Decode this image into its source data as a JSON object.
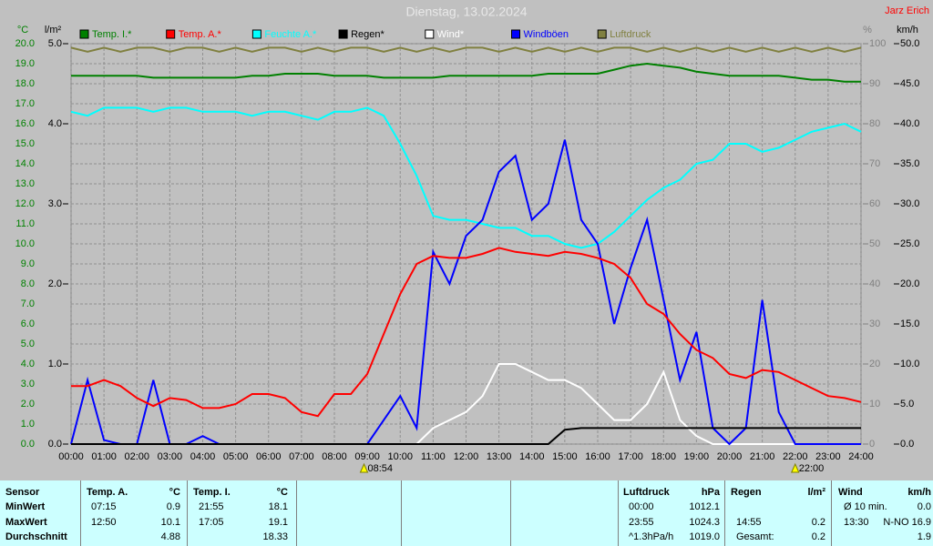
{
  "chart_data": {
    "type": "line",
    "title": "Dienstag, 13.02.2024",
    "author": "Jarz Erich",
    "axis_units": {
      "y": "°C",
      "y3": "l/m²",
      "y2": "%",
      "y4": "km/h"
    },
    "x": [
      0,
      0.5,
      1,
      1.5,
      2,
      2.5,
      3,
      3.5,
      4,
      4.5,
      5,
      5.5,
      6,
      6.5,
      7,
      7.5,
      8,
      8.5,
      9,
      9.5,
      10,
      10.5,
      11,
      11.5,
      12,
      12.5,
      13,
      13.5,
      14,
      14.5,
      15,
      15.5,
      16,
      16.5,
      17,
      17.5,
      18,
      18.5,
      19,
      19.5,
      20,
      20.5,
      21,
      21.5,
      22,
      22.5,
      23,
      23.5,
      24
    ],
    "xlim": [
      0,
      24
    ],
    "xticks": [
      {
        "value": 0,
        "label": "00:00"
      },
      {
        "value": 1,
        "label": "01:00"
      },
      {
        "value": 2,
        "label": "02:00"
      },
      {
        "value": 3,
        "label": "03:00"
      },
      {
        "value": 4,
        "label": "04:00"
      },
      {
        "value": 5,
        "label": "05:00"
      },
      {
        "value": 6,
        "label": "06:00"
      },
      {
        "value": 7,
        "label": "07:00"
      },
      {
        "value": 8,
        "label": "08:00"
      },
      {
        "value": 9,
        "label": "09:00"
      },
      {
        "value": 10,
        "label": "10:00"
      },
      {
        "value": 11,
        "label": "11:00"
      },
      {
        "value": 12,
        "label": "12:00"
      },
      {
        "value": 13,
        "label": "13:00"
      },
      {
        "value": 14,
        "label": "14:00"
      },
      {
        "value": 15,
        "label": "15:00"
      },
      {
        "value": 16,
        "label": "16:00"
      },
      {
        "value": 17,
        "label": "17:00"
      },
      {
        "value": 18,
        "label": "18:00"
      },
      {
        "value": 19,
        "label": "19:00"
      },
      {
        "value": 20,
        "label": "20:00"
      },
      {
        "value": 21,
        "label": "21:00"
      },
      {
        "value": 22,
        "label": "22:00"
      },
      {
        "value": 23,
        "label": "23:00"
      },
      {
        "value": 24,
        "label": "24:00"
      }
    ],
    "ylim": [
      0,
      20
    ],
    "yticks": [
      {
        "value": 0,
        "label": "0.0"
      },
      {
        "value": 1,
        "label": "1.0"
      },
      {
        "value": 2,
        "label": "2.0"
      },
      {
        "value": 3,
        "label": "3.0"
      },
      {
        "value": 4,
        "label": "4.0"
      },
      {
        "value": 5,
        "label": "5.0"
      },
      {
        "value": 6,
        "label": "6.0"
      },
      {
        "value": 7,
        "label": "7.0"
      },
      {
        "value": 8,
        "label": "8.0"
      },
      {
        "value": 9,
        "label": "9.0"
      },
      {
        "value": 10,
        "label": "10.0"
      },
      {
        "value": 11,
        "label": "11.0"
      },
      {
        "value": 12,
        "label": "12.0"
      },
      {
        "value": 13,
        "label": "13.0"
      },
      {
        "value": 14,
        "label": "14.0"
      },
      {
        "value": 15,
        "label": "15.0"
      },
      {
        "value": 16,
        "label": "16.0"
      },
      {
        "value": 17,
        "label": "17.0"
      },
      {
        "value": 18,
        "label": "18.0"
      },
      {
        "value": 19,
        "label": "19.0"
      },
      {
        "value": 20,
        "label": "20.0"
      }
    ],
    "y2lim": [
      0,
      100
    ],
    "y2ticks": [
      0,
      10,
      20,
      30,
      40,
      50,
      60,
      70,
      80,
      90,
      100
    ],
    "y3lim": [
      0,
      5
    ],
    "y3ticks": [
      {
        "value": 0,
        "label": "0.0"
      },
      {
        "value": 1,
        "label": "1.0"
      },
      {
        "value": 2,
        "label": "2.0"
      },
      {
        "value": 3,
        "label": "3.0"
      },
      {
        "value": 4,
        "label": "4.0"
      },
      {
        "value": 5,
        "label": "5.0"
      }
    ],
    "y4lim": [
      0,
      50
    ],
    "y4ticks": [
      {
        "value": 0,
        "label": "0.0"
      },
      {
        "value": 5,
        "label": "5.0"
      },
      {
        "value": 10,
        "label": "10.0"
      },
      {
        "value": 15,
        "label": "15.0"
      },
      {
        "value": 20,
        "label": "20.0"
      },
      {
        "value": 25,
        "label": "25.0"
      },
      {
        "value": 30,
        "label": "30.0"
      },
      {
        "value": 35,
        "label": "35.0"
      },
      {
        "value": 40,
        "label": "40.0"
      },
      {
        "value": 45,
        "label": "45.0"
      },
      {
        "value": 50,
        "label": "50.0"
      }
    ],
    "grid": true,
    "series": [
      {
        "name": "Temp. I.*",
        "color": "#008000",
        "axis": "y",
        "values": [
          18.4,
          18.4,
          18.4,
          18.4,
          18.4,
          18.3,
          18.3,
          18.3,
          18.3,
          18.3,
          18.3,
          18.4,
          18.4,
          18.5,
          18.5,
          18.5,
          18.4,
          18.4,
          18.4,
          18.3,
          18.3,
          18.3,
          18.3,
          18.4,
          18.4,
          18.4,
          18.4,
          18.4,
          18.4,
          18.5,
          18.5,
          18.5,
          18.5,
          18.7,
          18.9,
          19.0,
          18.9,
          18.8,
          18.6,
          18.5,
          18.4,
          18.4,
          18.4,
          18.4,
          18.3,
          18.2,
          18.2,
          18.1,
          18.1
        ]
      },
      {
        "name": "Temp. A.*",
        "color": "#ff0000",
        "axis": "y",
        "values": [
          2.9,
          2.9,
          3.2,
          2.9,
          2.3,
          1.9,
          2.3,
          2.2,
          1.8,
          1.8,
          2.0,
          2.5,
          2.5,
          2.3,
          1.6,
          1.4,
          2.5,
          2.5,
          3.5,
          5.5,
          7.5,
          9.0,
          9.4,
          9.3,
          9.3,
          9.5,
          9.8,
          9.6,
          9.5,
          9.4,
          9.6,
          9.5,
          9.3,
          9.0,
          8.3,
          7.0,
          6.5,
          5.5,
          4.7,
          4.3,
          3.5,
          3.3,
          3.7,
          3.6,
          3.2,
          2.8,
          2.4,
          2.3,
          2.1
        ]
      },
      {
        "name": "Feuchte A.*",
        "color": "#00ffff",
        "axis": "y2",
        "values": [
          83,
          82,
          84,
          84,
          84,
          83,
          84,
          84,
          83,
          83,
          83,
          82,
          83,
          83,
          82,
          81,
          83,
          83,
          84,
          82,
          75,
          67,
          57,
          56,
          56,
          55,
          54,
          54,
          52,
          52,
          50,
          49,
          50,
          53,
          57,
          61,
          64,
          66,
          70,
          71,
          75,
          75,
          73,
          74,
          76,
          78,
          79,
          80,
          78
        ]
      },
      {
        "name": "Regen*",
        "color": "#000000",
        "axis": "y3",
        "values": [
          0,
          0,
          0,
          0,
          0,
          0,
          0,
          0,
          0,
          0,
          0,
          0,
          0,
          0,
          0,
          0,
          0,
          0,
          0,
          0,
          0,
          0,
          0,
          0,
          0,
          0,
          0,
          0,
          0,
          0,
          0.18,
          0.2,
          0.2,
          0.2,
          0.2,
          0.2,
          0.2,
          0.2,
          0.2,
          0.2,
          0.2,
          0.2,
          0.2,
          0.2,
          0.2,
          0.2,
          0.2,
          0.2,
          0.2
        ]
      },
      {
        "name": "Wind*",
        "color": "#ffffff",
        "axis": "y4",
        "values": [
          0,
          0,
          0,
          0,
          0,
          0,
          0,
          0,
          0,
          0,
          0,
          0,
          0,
          0,
          0,
          0,
          0,
          0,
          0,
          0,
          0,
          0,
          2,
          3,
          4,
          6,
          10,
          10,
          9,
          8,
          8,
          7,
          5,
          3,
          3,
          5,
          9,
          3,
          1,
          0,
          0,
          0,
          0,
          0,
          0,
          0,
          0,
          0,
          0
        ]
      },
      {
        "name": "Windböen",
        "color": "#0000ff",
        "axis": "y4",
        "values": [
          0,
          8,
          0.5,
          0,
          0,
          8,
          0,
          0,
          1,
          0,
          0,
          0,
          0,
          0,
          0,
          0,
          0,
          0,
          0,
          3,
          6,
          2,
          24,
          20,
          26,
          28,
          34,
          36,
          28,
          30,
          38,
          28,
          25,
          15,
          22,
          28,
          18,
          8,
          14,
          2,
          0,
          2,
          18,
          4,
          0,
          0,
          0,
          0,
          0
        ]
      },
      {
        "name": "Luftdruck",
        "color": "#808040",
        "axis": "y2",
        "values": [
          99,
          98,
          99,
          98,
          99,
          99,
          98,
          99,
          99,
          98,
          99,
          98,
          99,
          99,
          98,
          99,
          98,
          99,
          99,
          98,
          99,
          98,
          99,
          98,
          99,
          99,
          98,
          99,
          98,
          99,
          98,
          99,
          98,
          99,
          99,
          98,
          99,
          98,
          99,
          98,
          99,
          98,
          99,
          98,
          99,
          98,
          99,
          98,
          99
        ]
      }
    ],
    "annotations": [
      {
        "x": 8.9,
        "label": "08:54"
      },
      {
        "x": 22,
        "label": "22:00"
      }
    ]
  },
  "table": {
    "columns": [
      {
        "header": "Sensor",
        "unit": null,
        "rows": [
          [
            null,
            "MinWert"
          ],
          [
            null,
            "MaxWert"
          ],
          [
            null,
            "Durchschnitt"
          ]
        ]
      },
      {
        "header": "Temp. A.",
        "unit": "°C",
        "rows": [
          [
            "07:15",
            "0.9"
          ],
          [
            "12:50",
            "10.1"
          ],
          [
            null,
            "4.88"
          ]
        ]
      },
      {
        "header": "Temp. I.",
        "unit": "°C",
        "rows": [
          [
            "21:55",
            "18.1"
          ],
          [
            "17:05",
            "19.1"
          ],
          [
            null,
            "18.33"
          ]
        ]
      },
      {
        "header": "Luftdruck",
        "unit": "hPa",
        "rows": [
          [
            "00:00",
            "1012.1"
          ],
          [
            "23:55",
            "1024.3"
          ],
          [
            "^1.3hPa/h",
            "1019.0"
          ]
        ]
      },
      {
        "header": "Regen",
        "unit": "l/m²",
        "rows": [
          [
            null,
            null
          ],
          [
            "14:55",
            "0.2"
          ],
          [
            "Gesamt:",
            "0.2"
          ]
        ]
      },
      {
        "header": "Wind",
        "unit": "km/h",
        "rows": [
          [
            "Ø 10 min.",
            "0.0"
          ],
          [
            "13:30",
            "N-NO 16.9"
          ],
          [
            null,
            "1.9"
          ]
        ]
      }
    ]
  }
}
